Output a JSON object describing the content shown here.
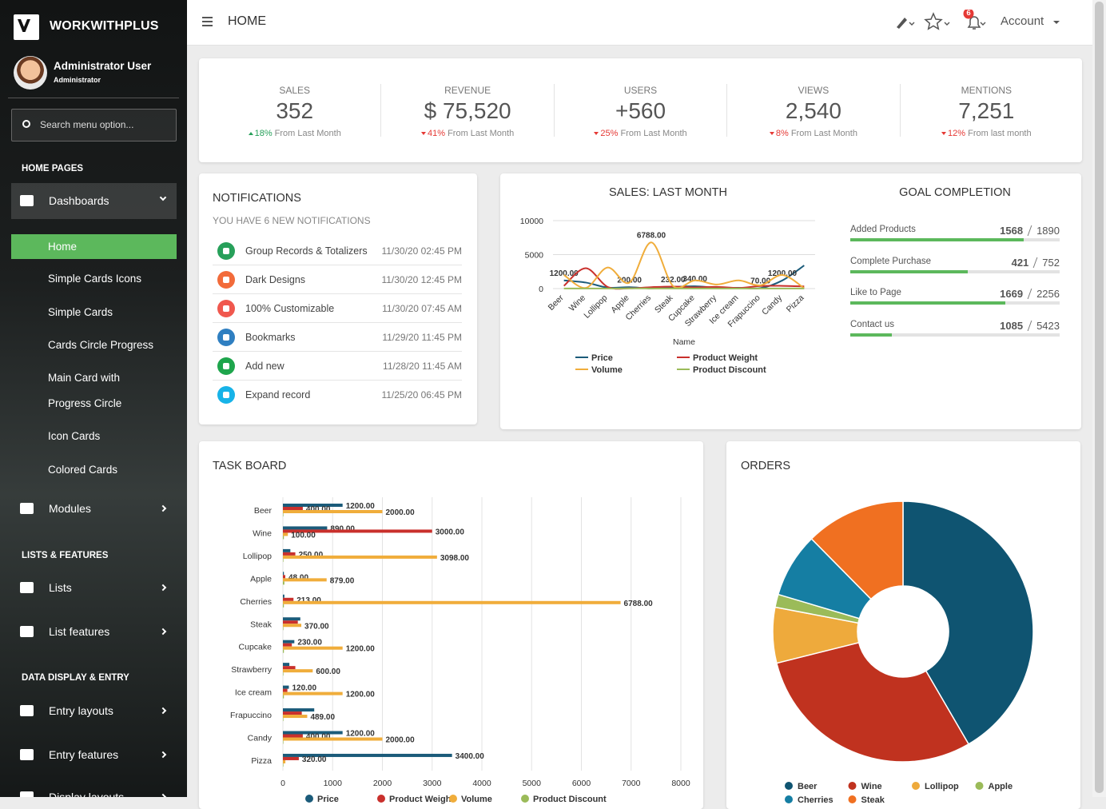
{
  "sidebar": {
    "brand": "WORKWITHPLUS",
    "user": "Administrator User",
    "role": "Administrator",
    "search": "Search menu option...",
    "sections": [
      {
        "title": "HOME PAGES",
        "items": [
          {
            "label": "Dashboards",
            "children": [
              "Home",
              "Simple Cards Icons",
              "Simple Cards",
              "Cards Circle Progress",
              "Main Card with Progress Circle",
              "Icon Cards",
              "Colored Cards"
            ]
          },
          {
            "label": "Modules"
          }
        ]
      },
      {
        "title": "LISTS & FEATURES",
        "items": [
          {
            "label": "Lists"
          },
          {
            "label": "List features"
          }
        ]
      },
      {
        "title": "DATA DISPLAY & ENTRY",
        "items": [
          {
            "label": "Entry layouts"
          },
          {
            "label": "Entry features"
          },
          {
            "label": "Display layouts"
          }
        ]
      }
    ]
  },
  "topbar": {
    "title": "HOME",
    "badge": "6",
    "account": "Account"
  },
  "stats": [
    {
      "label": "SALES",
      "value": "352",
      "change": "18%",
      "trend": "up",
      "note": "From Last Month"
    },
    {
      "label": "REVENUE",
      "value": "$ 75,520",
      "change": "41%",
      "trend": "down",
      "note": "From Last Month"
    },
    {
      "label": "USERS",
      "value": "+560",
      "change": "25%",
      "trend": "down",
      "note": "From Last Month"
    },
    {
      "label": "VIEWS",
      "value": "2,540",
      "change": "8%",
      "trend": "down",
      "note": "From Last Month"
    },
    {
      "label": "MENTIONS",
      "value": "7,251",
      "change": "12%",
      "trend": "down",
      "note": "From last month"
    }
  ],
  "notifications": {
    "title": "NOTIFICATIONS",
    "subtitle": "YOU HAVE 6 NEW NOTIFICATIONS",
    "items": [
      {
        "text": "Group Records & Totalizers",
        "date": "11/30/20 02:45 PM",
        "color": "#27a05a"
      },
      {
        "text": "Dark Designs",
        "date": "11/30/20 12:45 PM",
        "color": "#f26b3a"
      },
      {
        "text": "100% Customizable",
        "date": "11/30/20 07:45 AM",
        "color": "#f0584e"
      },
      {
        "text": "Bookmarks",
        "date": "11/29/20 11:45 PM",
        "color": "#2f7fc1"
      },
      {
        "text": "Add new",
        "date": "11/28/20 11:45 AM",
        "color": "#1ea54c"
      },
      {
        "text": "Expand record",
        "date": "11/25/20 06:45 PM",
        "color": "#17b3e8"
      }
    ]
  },
  "goals": {
    "title": "GOAL COMPLETION",
    "color": "#5cb85c",
    "items": [
      {
        "label": "Added Products",
        "value": 1568,
        "total": 1890
      },
      {
        "label": "Complete Purchase",
        "value": 421,
        "total": 752
      },
      {
        "label": "Like to Page",
        "value": 1669,
        "total": 2256
      },
      {
        "label": "Contact us",
        "value": 1085,
        "total": 5423
      }
    ]
  },
  "chart_data": [
    {
      "type": "line",
      "title": "SALES: LAST MONTH",
      "x_label": "Name",
      "categories": [
        "Beer",
        "Wine",
        "Lollipop",
        "Apple",
        "Cherries",
        "Steak",
        "Cupcake",
        "Strawberry",
        "Ice cream",
        "Frapuccino",
        "Candy",
        "Pizza"
      ],
      "ylim": [
        0,
        10000
      ],
      "yticks": [
        0,
        5000,
        10000
      ],
      "grid": true,
      "series": [
        {
          "name": "Price",
          "color": "#1b5b7a",
          "values": [
            1200,
            890,
            150,
            200,
            30,
            232,
            340,
            130,
            120,
            70,
            1200,
            3400
          ],
          "value_labels": [
            "1200.00",
            null,
            null,
            "200.00",
            null,
            "232.00",
            "340.00",
            null,
            null,
            "70.00",
            "1200.00",
            null
          ]
        },
        {
          "name": "Product Weight",
          "color": "#c9302c",
          "values": [
            400,
            3000,
            250,
            48,
            213,
            300,
            180,
            250,
            90,
            380,
            400,
            320
          ]
        },
        {
          "name": "Volume",
          "color": "#f0ad3b",
          "values": [
            2000,
            100,
            3098,
            879,
            6788,
            370,
            1200,
            600,
            1200,
            489,
            2000,
            50
          ],
          "value_labels": [
            null,
            null,
            null,
            null,
            "6788.00",
            null,
            null,
            null,
            null,
            null,
            null,
            null
          ]
        },
        {
          "name": "Product Discount",
          "color": "#9bbb59",
          "values": [
            10,
            20,
            10,
            30,
            20,
            10,
            20,
            10,
            20,
            10,
            10,
            10
          ]
        }
      ]
    },
    {
      "type": "hbar",
      "title": "TASK BOARD",
      "categories": [
        "Beer",
        "Wine",
        "Lollipop",
        "Apple",
        "Cherries",
        "Steak",
        "Cupcake",
        "Strawberry",
        "Ice cream",
        "Frapuccino",
        "Candy",
        "Pizza"
      ],
      "xlim": [
        0,
        8000
      ],
      "xticks": [
        0,
        1000,
        2000,
        3000,
        4000,
        5000,
        6000,
        7000,
        8000
      ],
      "grid": true,
      "series": [
        {
          "name": "Price",
          "color": "#1b5b7a",
          "values": [
            1200,
            890,
            150,
            20,
            30,
            350,
            230,
            130,
            120,
            630,
            1200,
            3400
          ],
          "value_labels": [
            "1200.00",
            "890.00",
            null,
            null,
            null,
            null,
            "230.00",
            null,
            "120.00",
            null,
            "1200.00",
            "3400.00"
          ]
        },
        {
          "name": "Product Weight",
          "color": "#c9302c",
          "values": [
            400,
            3000,
            250,
            48,
            213,
            300,
            180,
            250,
            90,
            380,
            400,
            320
          ],
          "value_labels": [
            "400.00",
            "3000.00",
            "250.00",
            "48.00",
            "213.00",
            null,
            null,
            null,
            null,
            null,
            "400.00",
            "320.00"
          ]
        },
        {
          "name": "Volume",
          "color": "#f0ad3b",
          "values": [
            2000,
            100,
            3098,
            879,
            6788,
            370,
            1200,
            600,
            1200,
            489,
            2000,
            50
          ],
          "value_labels": [
            "2000.00",
            "100.00",
            "3098.00",
            "879.00",
            "6788.00",
            "370.00",
            "1200.00",
            "600.00",
            "1200.00",
            "489.00",
            "2000.00",
            null
          ]
        },
        {
          "name": "Product Discount",
          "color": "#9bbb59",
          "values": [
            10,
            20,
            10,
            30,
            20,
            10,
            20,
            10,
            20,
            10,
            10,
            10
          ]
        }
      ]
    },
    {
      "type": "pie",
      "title": "ORDERS",
      "donut": true,
      "categories": [
        "Beer",
        "Wine",
        "Lollipop",
        "Apple",
        "Cherries",
        "Steak"
      ],
      "values": [
        41.6,
        29.5,
        6.9,
        1.6,
        8,
        12.4
      ],
      "colors": [
        "#0f5471",
        "#c0321f",
        "#eeaa3c",
        "#9bbb59",
        "#157ea3",
        "#f07021"
      ]
    }
  ]
}
